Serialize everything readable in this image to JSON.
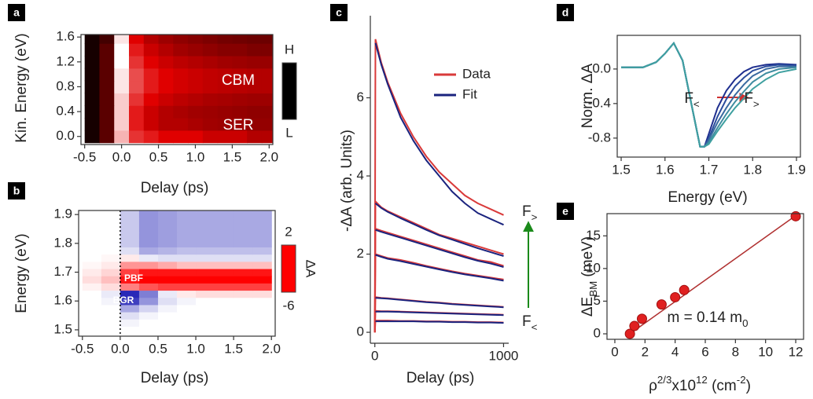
{
  "chart_data": [
    {
      "type": "heatmap",
      "panel": "a",
      "frame": "box",
      "xlabel": "Delay (ps)",
      "ylabel": "Kin. Energy (eV)",
      "xlim": [
        -0.55,
        2.05
      ],
      "ylim": [
        -0.13,
        1.64
      ],
      "xticks": [
        -0.5,
        {
          "value": 0,
          "label": "0.0"
        },
        0.5,
        {
          "value": 1,
          "label": "1.0"
        },
        1.5,
        {
          "value": 2,
          "label": "2.0"
        }
      ],
      "yticks": [
        {
          "value": 0,
          "label": "0.0"
        },
        0.4,
        0.8,
        1.2,
        1.6
      ],
      "x": [
        -0.4,
        -0.2,
        0.0,
        0.2,
        0.4,
        0.6,
        0.8,
        1.0,
        1.2,
        1.4,
        1.6,
        1.8,
        2.0
      ],
      "y": [
        0.0,
        0.2,
        0.4,
        0.6,
        0.8,
        1.0,
        1.2,
        1.4,
        1.6
      ],
      "z": [
        [
          0.05,
          0.2,
          0.85,
          0.6,
          0.55,
          0.5,
          0.5,
          0.5,
          0.45,
          0.45,
          0.45,
          0.4,
          0.4
        ],
        [
          0.05,
          0.2,
          0.9,
          0.55,
          0.45,
          0.4,
          0.4,
          0.38,
          0.36,
          0.35,
          0.35,
          0.33,
          0.33
        ],
        [
          0.05,
          0.2,
          0.9,
          0.55,
          0.45,
          0.4,
          0.38,
          0.36,
          0.35,
          0.34,
          0.33,
          0.32,
          0.32
        ],
        [
          0.05,
          0.2,
          0.9,
          0.6,
          0.5,
          0.45,
          0.42,
          0.4,
          0.38,
          0.37,
          0.36,
          0.35,
          0.35
        ],
        [
          0.05,
          0.2,
          0.95,
          0.65,
          0.55,
          0.5,
          0.47,
          0.45,
          0.43,
          0.42,
          0.41,
          0.4,
          0.4
        ],
        [
          0.05,
          0.2,
          0.95,
          0.65,
          0.55,
          0.5,
          0.47,
          0.45,
          0.43,
          0.42,
          0.41,
          0.4,
          0.4
        ],
        [
          0.05,
          0.2,
          1.0,
          0.6,
          0.5,
          0.45,
          0.42,
          0.4,
          0.38,
          0.36,
          0.35,
          0.34,
          0.34
        ],
        [
          0.05,
          0.2,
          1.0,
          0.55,
          0.45,
          0.4,
          0.36,
          0.34,
          0.32,
          0.3,
          0.3,
          0.28,
          0.28
        ],
        [
          0.05,
          0.15,
          0.95,
          0.5,
          0.4,
          0.35,
          0.32,
          0.3,
          0.28,
          0.26,
          0.25,
          0.24,
          0.24
        ]
      ],
      "zlim": [
        0,
        1
      ],
      "colormap": [
        [
          0,
          "#000000"
        ],
        [
          0.5,
          "#e00000"
        ],
        [
          1,
          "#ffffff"
        ]
      ],
      "colorbar": {
        "ticks": [
          {
            "value": 1,
            "label": "H"
          },
          {
            "value": 0,
            "label": "L"
          }
        ]
      },
      "annotations": [
        "CBM",
        "SER"
      ]
    },
    {
      "type": "heatmap",
      "panel": "b",
      "frame": "box",
      "xlabel": "Delay (ps)",
      "ylabel": "Energy (eV)",
      "xlim": [
        -0.55,
        2.05
      ],
      "ylim": [
        1.478,
        1.914
      ],
      "xticks": [
        -0.5,
        {
          "value": 0,
          "label": "0.0"
        },
        0.5,
        {
          "value": 1,
          "label": "1.0"
        },
        1.5,
        {
          "value": 2,
          "label": "2.0"
        }
      ],
      "yticks": [
        1.5,
        1.6,
        1.7,
        1.8,
        1.9
      ],
      "x": [
        -0.375,
        -0.125,
        0.125,
        0.375,
        0.625,
        0.875,
        1.125,
        1.375,
        1.625,
        1.875
      ],
      "y": [
        1.5,
        1.525,
        1.55,
        1.575,
        1.6,
        1.625,
        1.65,
        1.675,
        1.7,
        1.725,
        1.75,
        1.775,
        1.8,
        1.825,
        1.85,
        1.875,
        1.9
      ],
      "z": [
        [
          0,
          0,
          0,
          0,
          0,
          0,
          0,
          0,
          0,
          0
        ],
        [
          0,
          0,
          0.1,
          0,
          0,
          0,
          0,
          0,
          0,
          0
        ],
        [
          0,
          0,
          0.3,
          0.1,
          0,
          0,
          0,
          0,
          0,
          0
        ],
        [
          0,
          0,
          0.8,
          0.4,
          0.1,
          0,
          0,
          0,
          0,
          0
        ],
        [
          0,
          0.1,
          1.8,
          1.0,
          0.3,
          0.1,
          0,
          0,
          0,
          0
        ],
        [
          0,
          0.2,
          2.0,
          1.2,
          0.2,
          -0.5,
          -0.8,
          -0.8,
          -0.8,
          -0.8
        ],
        [
          -0.3,
          -0.8,
          -3,
          -4,
          -4.5,
          -4.5,
          -4.5,
          -4.5,
          -4.5,
          -4.5
        ],
        [
          -0.8,
          -1.5,
          -5.5,
          -6,
          -6,
          -6,
          -6,
          -6,
          -6,
          -6
        ],
        [
          -0.5,
          -1,
          -4.5,
          -5.5,
          -5.5,
          -5.5,
          -5.5,
          -5.5,
          -5.5,
          -5.5
        ],
        [
          -0.2,
          -0.5,
          -2.5,
          -2.5,
          -2,
          -1.5,
          -1.5,
          -1.5,
          -1.5,
          -1.5
        ],
        [
          0,
          -0.2,
          -0.5,
          0.2,
          0.3,
          0.3,
          0.3,
          0.3,
          0.3,
          0.3
        ],
        [
          0,
          0,
          0.3,
          0.8,
          0.7,
          0.6,
          0.6,
          0.6,
          0.6,
          0.6
        ],
        [
          0,
          0,
          0.5,
          1.0,
          0.9,
          0.8,
          0.8,
          0.8,
          0.8,
          0.8
        ],
        [
          0,
          0,
          0.5,
          1.0,
          0.9,
          0.8,
          0.8,
          0.8,
          0.8,
          0.8
        ],
        [
          0,
          0,
          0.5,
          1.0,
          0.9,
          0.8,
          0.8,
          0.8,
          0.8,
          0.8
        ],
        [
          0,
          0,
          0.5,
          1.0,
          0.9,
          0.8,
          0.8,
          0.8,
          0.8,
          0.8
        ],
        [
          0,
          0,
          0.5,
          1.0,
          0.9,
          0.8,
          0.8,
          0.8,
          0.8,
          0.8
        ]
      ],
      "zlim": [
        -6,
        2
      ],
      "colormap": [
        [
          -6,
          "#ff0000"
        ],
        [
          0,
          "#ffffff"
        ],
        [
          2,
          "#2828b8"
        ]
      ],
      "colorbar": {
        "ticks": [
          2,
          -6
        ],
        "label": "ΔA"
      },
      "vline": 0,
      "annotations": [
        "PBF",
        "BGR"
      ]
    },
    {
      "type": "line",
      "panel": "c",
      "frame": "axes",
      "xlabel": "Delay (ps)",
      "ylabel": "-ΔA (arb. Units)",
      "xlim": [
        -35,
        1040
      ],
      "ylim": [
        -0.28,
        8.1
      ],
      "xticks": [
        0,
        1000
      ],
      "yticks": [
        0,
        2,
        4,
        6
      ],
      "x": [
        0,
        5,
        50,
        100,
        200,
        300,
        400,
        500,
        600,
        700,
        800,
        900,
        1000
      ],
      "series": [
        {
          "name": "Data",
          "color": "#d93a3a",
          "curves": [
            [
              0,
              7.5,
              6.9,
              6.4,
              5.6,
              5.0,
              4.5,
              4.1,
              3.8,
              3.5,
              3.3,
              3.15,
              3.0
            ],
            [
              0,
              3.35,
              3.2,
              3.1,
              2.95,
              2.8,
              2.65,
              2.5,
              2.4,
              2.3,
              2.2,
              2.1,
              2.0
            ],
            [
              0,
              2.65,
              2.6,
              2.55,
              2.45,
              2.35,
              2.25,
              2.15,
              2.05,
              1.95,
              1.85,
              1.8,
              1.7
            ],
            [
              0,
              2.0,
              1.95,
              1.9,
              1.85,
              1.78,
              1.7,
              1.63,
              1.56,
              1.5,
              1.45,
              1.4,
              1.35
            ],
            [
              0,
              0.9,
              0.88,
              0.87,
              0.84,
              0.81,
              0.78,
              0.76,
              0.73,
              0.71,
              0.69,
              0.67,
              0.65
            ],
            [
              0,
              0.55,
              0.54,
              0.54,
              0.53,
              0.52,
              0.51,
              0.5,
              0.49,
              0.48,
              0.47,
              0.46,
              0.45
            ],
            [
              0,
              0.3,
              0.3,
              0.3,
              0.29,
              0.29,
              0.28,
              0.28,
              0.27,
              0.27,
              0.26,
              0.26,
              0.25
            ]
          ]
        },
        {
          "name": "Fit",
          "color": "#1a237e",
          "curves": [
            [
              null,
              7.4,
              6.85,
              6.35,
              5.5,
              4.9,
              4.4,
              4.0,
              3.6,
              3.3,
              3.05,
              2.9,
              2.75
            ],
            [
              null,
              3.3,
              3.18,
              3.08,
              2.92,
              2.77,
              2.62,
              2.48,
              2.37,
              2.26,
              2.15,
              2.05,
              1.95
            ],
            [
              null,
              2.62,
              2.57,
              2.52,
              2.42,
              2.32,
              2.22,
              2.12,
              2.02,
              1.92,
              1.83,
              1.76,
              1.67
            ],
            [
              null,
              1.98,
              1.93,
              1.88,
              1.82,
              1.75,
              1.68,
              1.61,
              1.54,
              1.48,
              1.43,
              1.38,
              1.32
            ],
            [
              null,
              0.88,
              0.87,
              0.86,
              0.83,
              0.8,
              0.77,
              0.75,
              0.72,
              0.7,
              0.68,
              0.66,
              0.64
            ],
            [
              null,
              0.53,
              0.53,
              0.53,
              0.52,
              0.51,
              0.5,
              0.49,
              0.48,
              0.47,
              0.46,
              0.45,
              0.44
            ],
            [
              null,
              0.28,
              0.28,
              0.28,
              0.28,
              0.28,
              0.27,
              0.27,
              0.26,
              0.26,
              0.25,
              0.25,
              0.24
            ]
          ]
        }
      ],
      "annotations": [
        [
          {
            "t": "F"
          },
          {
            "t": ">",
            "s": "sub"
          }
        ],
        [
          {
            "t": "F"
          },
          {
            "t": "<",
            "s": "sub"
          }
        ]
      ]
    },
    {
      "type": "line",
      "panel": "d",
      "frame": "box",
      "xlabel": "Energy (eV)",
      "ylabel": "Norm. ΔA",
      "xlim": [
        1.491,
        1.909
      ],
      "ylim": [
        -1.02,
        0.39
      ],
      "xticks": [
        1.5,
        1.6,
        1.7,
        1.8,
        1.9
      ],
      "yticks": [
        {
          "value": 0,
          "label": "0.0"
        },
        -0.4,
        -0.8
      ],
      "x": [
        1.5,
        1.55,
        1.58,
        1.6,
        1.62,
        1.64,
        1.66,
        1.68,
        1.69,
        1.7,
        1.72,
        1.74,
        1.76,
        1.78,
        1.8,
        1.83,
        1.86,
        1.9
      ],
      "series": [
        {
          "color": "#1f2f8f",
          "values": [
            0.02,
            0.02,
            0.08,
            0.18,
            0.3,
            0.1,
            -0.4,
            -0.9,
            -0.9,
            -0.75,
            -0.45,
            -0.25,
            -0.12,
            -0.03,
            0.02,
            0.05,
            0.06,
            0.05
          ]
        },
        {
          "color": "#2a4c9c",
          "values": [
            0.02,
            0.02,
            0.08,
            0.18,
            0.3,
            0.1,
            -0.4,
            -0.9,
            -0.9,
            -0.8,
            -0.55,
            -0.35,
            -0.2,
            -0.1,
            -0.02,
            0.03,
            0.05,
            0.04
          ]
        },
        {
          "color": "#3a6aa0",
          "values": [
            0.02,
            0.02,
            0.08,
            0.18,
            0.3,
            0.1,
            -0.4,
            -0.9,
            -0.9,
            -0.82,
            -0.62,
            -0.45,
            -0.3,
            -0.18,
            -0.08,
            0.0,
            0.03,
            0.03
          ]
        },
        {
          "color": "#3f8ca0",
          "values": [
            0.02,
            0.02,
            0.08,
            0.18,
            0.3,
            0.1,
            -0.4,
            -0.9,
            -0.9,
            -0.85,
            -0.68,
            -0.52,
            -0.38,
            -0.26,
            -0.15,
            -0.05,
            0.0,
            0.02
          ]
        },
        {
          "color": "#3fa0a0",
          "values": [
            0.02,
            0.02,
            0.08,
            0.18,
            0.3,
            0.1,
            -0.4,
            -0.9,
            -0.9,
            -0.87,
            -0.72,
            -0.58,
            -0.45,
            -0.34,
            -0.23,
            -0.12,
            -0.04,
            0.0
          ]
        }
      ],
      "annotations": [
        [
          {
            "t": "F"
          },
          {
            "t": "<",
            "s": "sub"
          }
        ],
        [
          {
            "t": "F"
          },
          {
            "t": ">",
            "s": "sub"
          }
        ]
      ]
    },
    {
      "type": "scatter",
      "panel": "e",
      "frame": "box",
      "xlabel": [
        {
          "t": "ρ"
        },
        {
          "t": "2/3",
          "s": "sup"
        },
        {
          "t": "x10"
        },
        {
          "t": "12",
          "s": "sup"
        },
        {
          "t": " (cm"
        },
        {
          "t": "-2",
          "s": "sup"
        },
        {
          "t": ")"
        }
      ],
      "ylabel": [
        {
          "t": "ΔE"
        },
        {
          "t": "BM",
          "s": "sub"
        },
        {
          "t": " (meV)"
        }
      ],
      "xlim": [
        -0.52,
        12.52
      ],
      "ylim": [
        -0.84,
        18.4
      ],
      "xticks": [
        0,
        2,
        4,
        6,
        8,
        10,
        12
      ],
      "yticks": [
        0,
        5,
        10,
        15
      ],
      "x": [
        1.0,
        1.3,
        1.8,
        3.1,
        4.0,
        4.6,
        12.0
      ],
      "values": [
        0,
        1.2,
        2.3,
        4.5,
        5.6,
        6.7,
        18.0
      ],
      "color": "#e02020",
      "fit": {
        "x": [
          1.0,
          12.0
        ],
        "values": [
          0,
          18.1
        ],
        "color": "#b03030"
      },
      "annotations": [
        [
          {
            "t": "m = 0.14 m"
          },
          {
            "t": "0",
            "s": "sub"
          }
        ]
      ]
    }
  ]
}
